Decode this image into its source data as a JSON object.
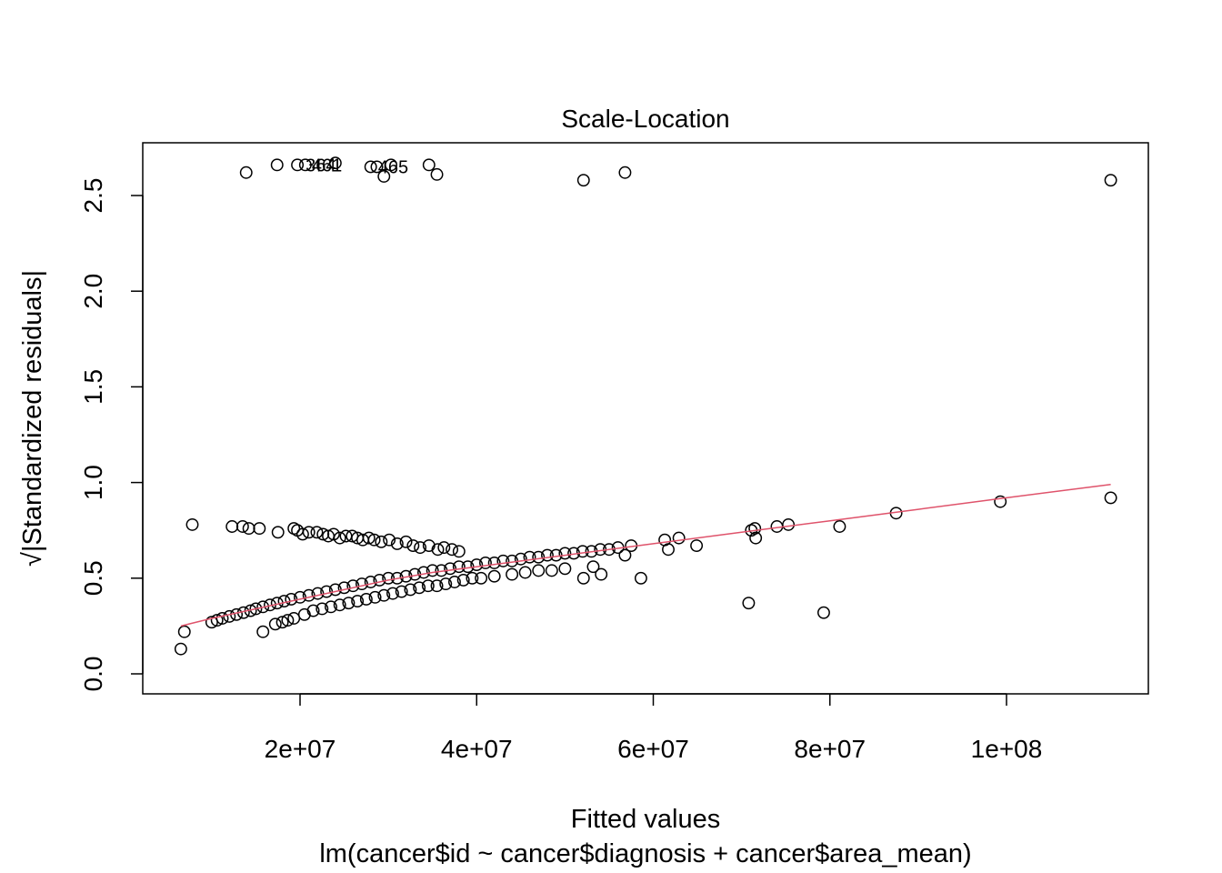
{
  "chart_data": {
    "type": "scatter",
    "title": "Scale-Location",
    "xlabel": "Fitted values",
    "subtitle": "lm(cancer$id ~ cancer$diagnosis + cancer$area_mean)",
    "ylabel": "√|Standardized residuals|",
    "xlim": [
      0,
      120000000
    ],
    "ylim": [
      -0.1,
      2.8
    ],
    "x_ticks": [
      20000000,
      40000000,
      60000000,
      80000000,
      100000000
    ],
    "x_tick_labels": [
      "2e+07",
      "4e+07",
      "6e+07",
      "8e+07",
      "1e+08"
    ],
    "y_ticks": [
      0.0,
      0.5,
      1.0,
      1.5,
      2.0,
      2.5
    ],
    "y_tick_labels": [
      "0.0",
      "0.5",
      "1.0",
      "1.5",
      "2.0",
      "2.5"
    ],
    "grid": false,
    "colors": {
      "points": "#000000",
      "smoother": "#DF536B"
    },
    "labeled_points": [
      {
        "label": "364",
        "x": 19700000,
        "y": 2.66
      },
      {
        "label": "461",
        "x": 20400000,
        "y": 2.66
      },
      {
        "label": "465",
        "x": 27900000,
        "y": 2.65
      }
    ],
    "series": [
      {
        "name": "",
        "type": "points",
        "x": [
          13900000,
          17400000,
          19700000,
          20600000,
          24000000,
          28000000,
          28700000,
          29500000,
          30300000,
          34600000,
          35500000,
          52100000,
          56800000,
          111800000,
          6500000,
          6900000,
          7800000,
          12300000,
          13500000,
          14200000,
          15400000,
          17500000,
          19300000,
          19700000,
          20300000,
          21000000,
          21900000,
          22600000,
          23200000,
          23800000,
          24500000,
          25200000,
          25900000,
          26500000,
          27100000,
          27800000,
          28400000,
          29200000,
          30100000,
          31000000,
          32000000,
          32800000,
          33600000,
          34600000,
          35600000,
          36300000,
          37200000,
          38000000,
          10000000,
          10600000,
          11200000,
          12000000,
          12800000,
          13600000,
          14400000,
          15000000,
          15800000,
          16600000,
          17400000,
          18200000,
          19000000,
          20000000,
          21000000,
          22000000,
          23000000,
          24000000,
          25000000,
          26000000,
          27000000,
          28000000,
          29000000,
          30000000,
          31000000,
          32000000,
          33000000,
          34000000,
          35000000,
          36000000,
          37000000,
          38000000,
          39000000,
          40000000,
          41000000,
          42000000,
          43000000,
          44000000,
          45000000,
          46000000,
          47000000,
          48000000,
          49000000,
          50000000,
          51000000,
          52000000,
          53000000,
          54000000,
          55000000,
          56000000,
          15800000,
          17200000,
          18000000,
          18600000,
          19300000,
          20500000,
          21500000,
          22500000,
          23500000,
          24500000,
          25500000,
          26500000,
          27500000,
          28500000,
          29500000,
          30500000,
          31500000,
          32500000,
          33500000,
          34500000,
          35500000,
          36500000,
          37500000,
          38500000,
          39500000,
          40500000,
          42000000,
          44000000,
          45500000,
          47000000,
          48500000,
          50000000,
          52100000,
          53200000,
          54100000,
          56800000,
          57500000,
          58600000,
          61300000,
          61700000,
          62900000,
          64900000,
          71100000,
          71500000,
          71600000,
          74000000,
          75300000,
          79300000,
          81100000,
          87500000,
          99300000,
          111800000,
          70800000
        ],
        "y": [
          2.62,
          2.66,
          2.66,
          2.66,
          2.67,
          2.65,
          2.65,
          2.6,
          2.66,
          2.66,
          2.61,
          2.58,
          2.62,
          2.58,
          0.13,
          0.22,
          0.78,
          0.77,
          0.77,
          0.76,
          0.76,
          0.74,
          0.76,
          0.75,
          0.73,
          0.74,
          0.74,
          0.73,
          0.72,
          0.73,
          0.71,
          0.72,
          0.72,
          0.71,
          0.7,
          0.71,
          0.7,
          0.69,
          0.7,
          0.68,
          0.69,
          0.67,
          0.66,
          0.67,
          0.65,
          0.66,
          0.65,
          0.64,
          0.27,
          0.28,
          0.29,
          0.3,
          0.31,
          0.32,
          0.33,
          0.34,
          0.35,
          0.36,
          0.37,
          0.38,
          0.39,
          0.4,
          0.41,
          0.42,
          0.43,
          0.44,
          0.45,
          0.46,
          0.47,
          0.48,
          0.49,
          0.5,
          0.5,
          0.51,
          0.52,
          0.53,
          0.54,
          0.54,
          0.55,
          0.56,
          0.56,
          0.57,
          0.58,
          0.58,
          0.59,
          0.59,
          0.6,
          0.61,
          0.61,
          0.62,
          0.62,
          0.63,
          0.63,
          0.64,
          0.64,
          0.65,
          0.65,
          0.66,
          0.22,
          0.26,
          0.27,
          0.28,
          0.29,
          0.31,
          0.33,
          0.34,
          0.35,
          0.36,
          0.37,
          0.38,
          0.39,
          0.4,
          0.41,
          0.42,
          0.43,
          0.44,
          0.45,
          0.46,
          0.46,
          0.47,
          0.48,
          0.49,
          0.5,
          0.5,
          0.51,
          0.52,
          0.53,
          0.54,
          0.54,
          0.55,
          0.5,
          0.56,
          0.52,
          0.62,
          0.67,
          0.5,
          0.7,
          0.65,
          0.71,
          0.67,
          0.75,
          0.76,
          0.71,
          0.77,
          0.78,
          0.32,
          0.77,
          0.84,
          0.9,
          0.92,
          0.37
        ]
      },
      {
        "name": "",
        "type": "line",
        "x": [
          6500000,
          10000000,
          15000000,
          20000000,
          25000000,
          30000000,
          35000000,
          40000000,
          45000000,
          50000000,
          55000000,
          60000000,
          70000000,
          80000000,
          90000000,
          100000000,
          111800000
        ],
        "y": [
          0.25,
          0.29,
          0.34,
          0.39,
          0.44,
          0.49,
          0.53,
          0.56,
          0.59,
          0.62,
          0.65,
          0.68,
          0.74,
          0.8,
          0.86,
          0.92,
          0.99
        ]
      }
    ]
  }
}
